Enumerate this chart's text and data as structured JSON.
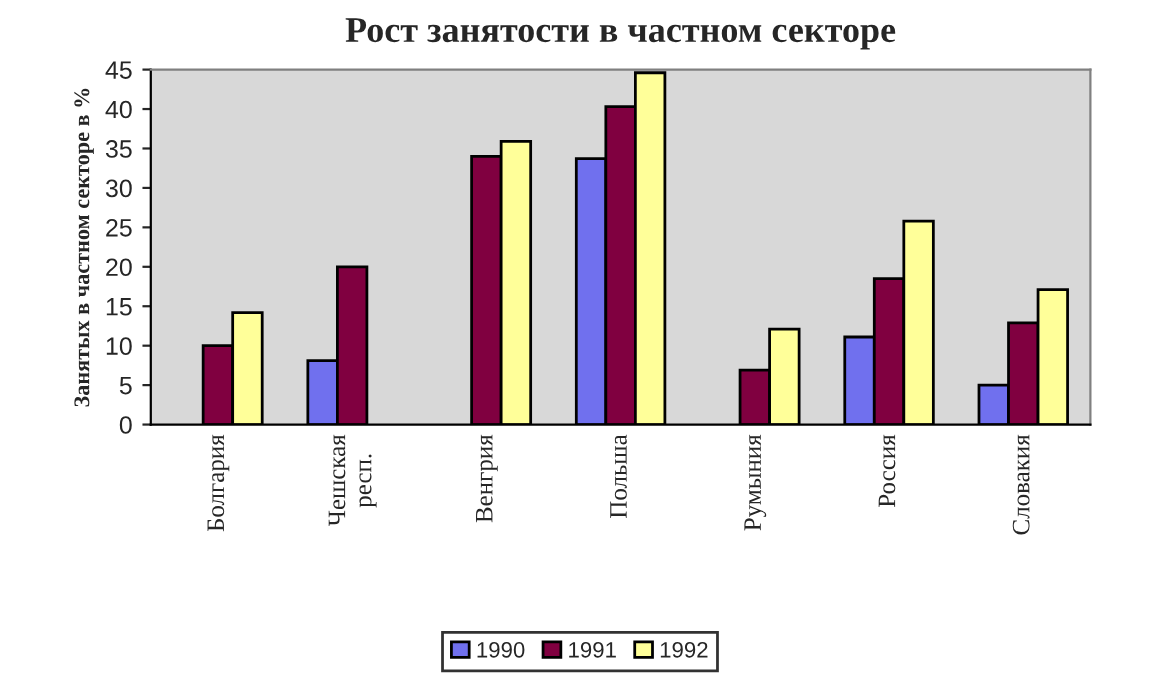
{
  "chart_data": {
    "type": "bar",
    "title": "Рост занятости в частном секторе",
    "ylabel": "Занятых в частном секторе в %",
    "categories": [
      "Болгария",
      "Чешская\nресп.",
      "Венгрия",
      "Польша",
      "Румыния",
      "Россия",
      "Словакия"
    ],
    "series": [
      {
        "name": "1990",
        "color": "#7070ee",
        "values": [
          null,
          8.1,
          null,
          33.7,
          null,
          11.1,
          5.0
        ]
      },
      {
        "name": "1991",
        "color": "#800040",
        "values": [
          10,
          20,
          34,
          40.3,
          6.9,
          18.5,
          12.9
        ]
      },
      {
        "name": "1992",
        "color": "#ffff99",
        "values": [
          14.2,
          null,
          35.9,
          44.6,
          12.1,
          25.8,
          17.1
        ]
      }
    ],
    "ylim": [
      0,
      45
    ],
    "yticks": [
      0,
      5,
      10,
      15,
      20,
      25,
      30,
      35,
      40,
      45
    ],
    "grid": false,
    "legend": "bottom"
  }
}
